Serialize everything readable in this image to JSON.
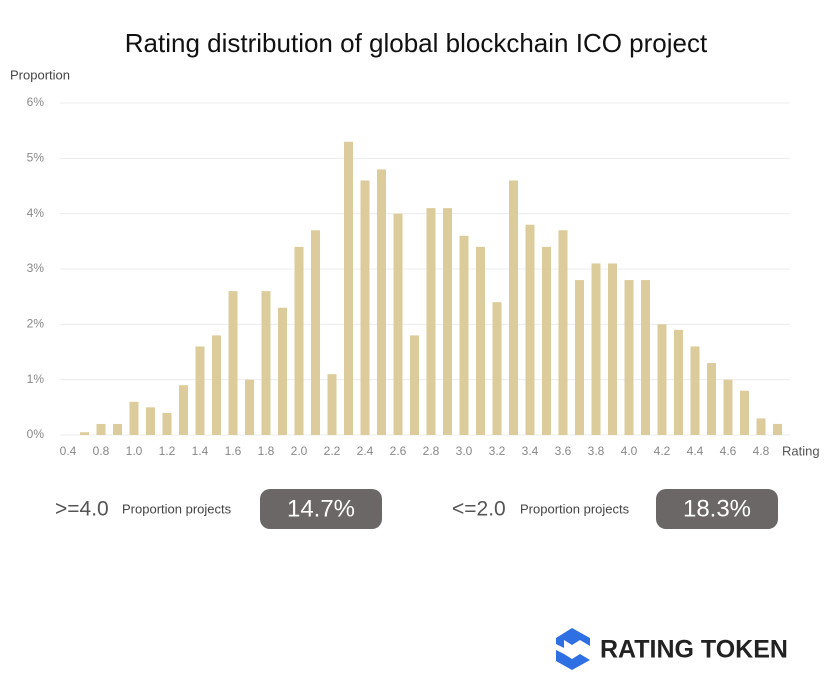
{
  "chart_data": {
    "type": "bar",
    "title": "Rating distribution of global blockchain ICO project",
    "y_label": "Proportion",
    "x_label": "Rating",
    "categories": [
      "0.4",
      null,
      "0.8",
      null,
      "1.0",
      null,
      "1.2",
      null,
      "1.4",
      null,
      "1.6",
      null,
      "1.8",
      null,
      "2.0",
      null,
      "2.2",
      null,
      "2.4",
      null,
      "2.6",
      null,
      "2.8",
      null,
      "3.0",
      null,
      "3.2",
      null,
      "3.4",
      null,
      "3.6",
      null,
      "3.8",
      null,
      "4.0",
      null,
      "4.2",
      null,
      "4.4",
      null,
      "4.6",
      null,
      "4.8",
      null
    ],
    "values": [
      0,
      0.05,
      0.2,
      0.2,
      0.6,
      0.5,
      0.4,
      0.9,
      1.6,
      1.8,
      2.6,
      1.0,
      2.6,
      2.3,
      3.4,
      3.7,
      1.1,
      5.3,
      4.6,
      4.8,
      4.0,
      1.8,
      4.1,
      4.1,
      3.6,
      3.4,
      2.4,
      4.6,
      3.8,
      3.4,
      3.7,
      2.8,
      3.1,
      3.1,
      2.8,
      2.8,
      2.0,
      1.9,
      1.6,
      1.3,
      1.0,
      0.8,
      0.3,
      0.2
    ],
    "color": "#dccb9b",
    "ylim": [
      0,
      6
    ],
    "yticks": [
      {
        "value": 0,
        "label": "0%"
      },
      {
        "value": 1,
        "label": "1%"
      },
      {
        "value": 2,
        "label": "2%"
      },
      {
        "value": 3,
        "label": "3%"
      },
      {
        "value": 4,
        "label": "4%"
      },
      {
        "value": 5,
        "label": "5%"
      },
      {
        "value": 6,
        "label": "6%"
      }
    ],
    "grid": true
  },
  "stats": [
    {
      "threshold": ">=4.0",
      "label": "Proportion projects",
      "value": "14.7%"
    },
    {
      "threshold": "<=2.0",
      "label": "Proportion projects",
      "value": "18.3%"
    }
  ],
  "logo": "RATING TOKEN"
}
